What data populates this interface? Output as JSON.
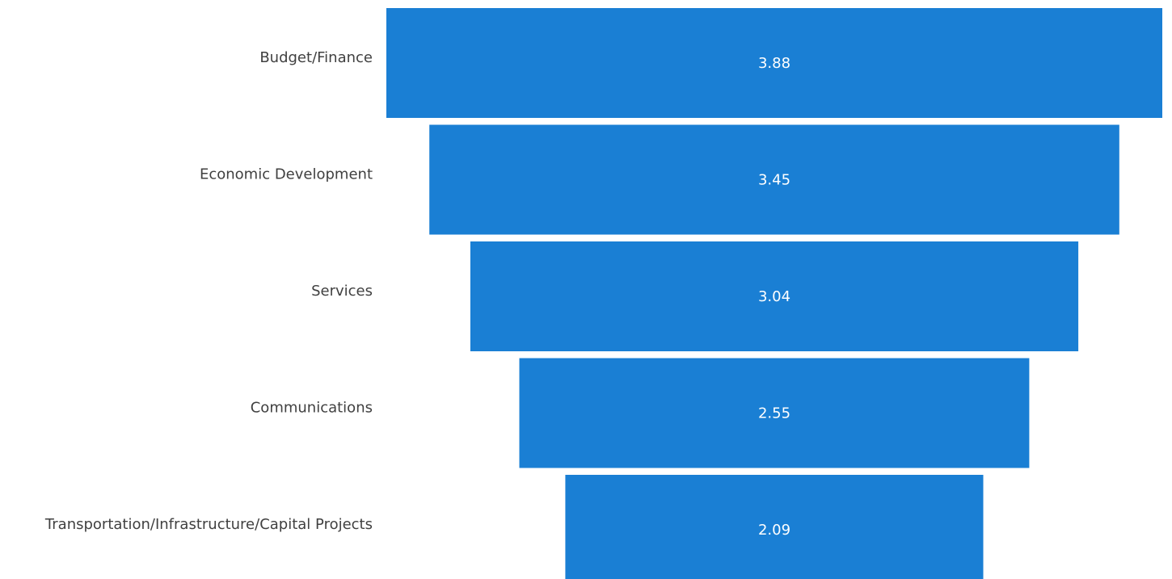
{
  "chart_data": {
    "type": "bar",
    "orientation": "horizontal-centered-funnel",
    "categories": [
      "Budget/Finance",
      "Economic Development",
      "Services",
      "Communications",
      "Transportation/Infrastructure/Capital Projects"
    ],
    "values": [
      3.88,
      3.45,
      3.04,
      2.55,
      2.09
    ],
    "value_labels": [
      "3.88",
      "3.45",
      "3.04",
      "2.55",
      "2.09"
    ],
    "title": "",
    "xlabel": "",
    "ylabel": "",
    "grid": false,
    "legend": "none",
    "bar_color": "#1a7fd4",
    "value_label_color": "#ffffff",
    "category_label_color": "#404040"
  }
}
